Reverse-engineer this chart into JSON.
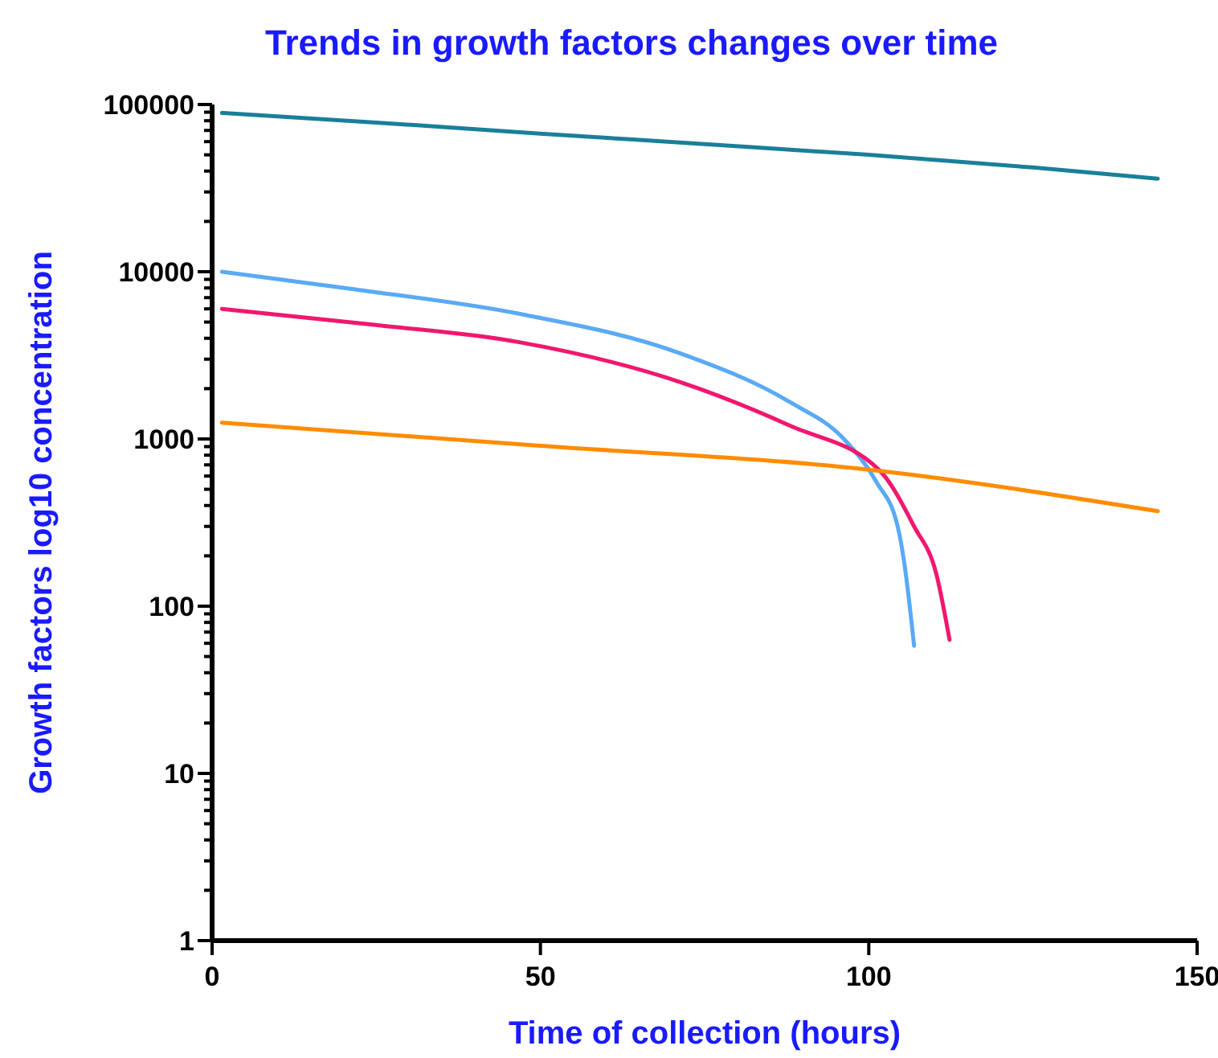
{
  "chart_data": {
    "type": "line",
    "title": "Trends in growth factors changes over time",
    "xlabel": "Time of collection (hours)",
    "ylabel": "Growth factors log10 concentration",
    "log": "y",
    "grid": false,
    "marker": "none",
    "line_style": "solid",
    "xlim": [
      0,
      150
    ],
    "xticks": [
      0,
      50,
      100,
      150
    ],
    "ylim": [
      1,
      100000
    ],
    "yticks": [
      1,
      {
        "value": 2,
        "label": null
      },
      {
        "value": 3,
        "label": null
      },
      {
        "value": 4,
        "label": null
      },
      {
        "value": 5,
        "label": null
      },
      {
        "value": 6,
        "label": null
      },
      {
        "value": 7,
        "label": null
      },
      {
        "value": 8,
        "label": null
      },
      {
        "value": 9,
        "label": null
      },
      10,
      {
        "value": 20,
        "label": null
      },
      {
        "value": 30,
        "label": null
      },
      {
        "value": 40,
        "label": null
      },
      {
        "value": 50,
        "label": null
      },
      {
        "value": 60,
        "label": null
      },
      {
        "value": 70,
        "label": null
      },
      {
        "value": 80,
        "label": null
      },
      {
        "value": 90,
        "label": null
      },
      100,
      {
        "value": 200,
        "label": null
      },
      {
        "value": 300,
        "label": null
      },
      {
        "value": 400,
        "label": null
      },
      {
        "value": 500,
        "label": null
      },
      {
        "value": 600,
        "label": null
      },
      {
        "value": 700,
        "label": null
      },
      {
        "value": 800,
        "label": null
      },
      {
        "value": 900,
        "label": null
      },
      1000,
      {
        "value": 2000,
        "label": null
      },
      {
        "value": 3000,
        "label": null
      },
      {
        "value": 4000,
        "label": null
      },
      {
        "value": 5000,
        "label": null
      },
      {
        "value": 6000,
        "label": null
      },
      {
        "value": 7000,
        "label": null
      },
      {
        "value": 8000,
        "label": null
      },
      {
        "value": 9000,
        "label": null
      },
      10000,
      {
        "value": 20000,
        "label": null
      },
      {
        "value": 30000,
        "label": null
      },
      {
        "value": 40000,
        "label": null
      },
      {
        "value": 50000,
        "label": null
      },
      {
        "value": 60000,
        "label": null
      },
      {
        "value": 70000,
        "label": null
      },
      {
        "value": 80000,
        "label": null
      },
      {
        "value": 90000,
        "label": null
      },
      100000
    ],
    "series": [
      {
        "color": "#1a7f99",
        "x": [
          1.5,
          25,
          50,
          75,
          100,
          125,
          144
        ],
        "values": [
          89000,
          78000,
          67000,
          58000,
          50000,
          42000,
          36000
        ]
      },
      {
        "color": "#5aaaf5",
        "x": [
          1.5,
          21.8,
          46.6,
          71.4,
          88,
          96.2,
          101.2,
          104.4,
          105.4,
          106.9
        ],
        "values": [
          10000,
          7840,
          5620,
          3240,
          1660,
          1000,
          550,
          300,
          182,
          58
        ]
      },
      {
        "color": "#f0186e",
        "x": [
          1.5,
          25,
          46.6,
          71.4,
          88,
          101.7,
          106.9,
          110.3,
          112.3
        ],
        "values": [
          6000,
          4800,
          3800,
          2180,
          1200,
          645,
          300,
          155,
          63
        ]
      },
      {
        "color": "#ff8c00",
        "x": [
          1.5,
          50,
          100,
          144
        ],
        "values": [
          1250,
          910,
          655,
          370
        ]
      }
    ]
  }
}
